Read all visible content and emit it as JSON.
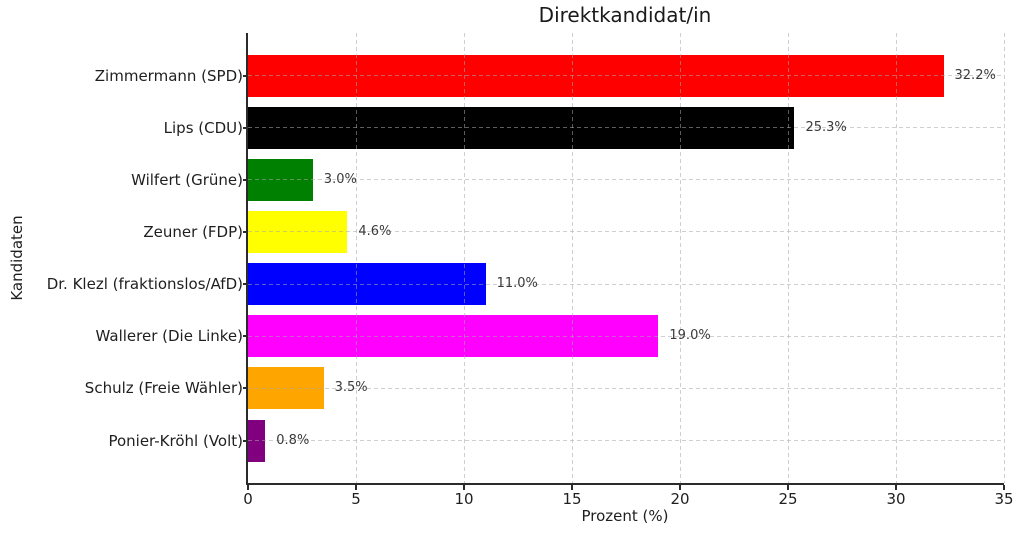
{
  "chart_data": {
    "type": "bar",
    "orientation": "horizontal",
    "title": "Direktkandidat/in",
    "xlabel": "Prozent (%)",
    "ylabel": "Kandidaten",
    "categories": [
      "Zimmermann (SPD)",
      "Lips (CDU)",
      "Wilfert (Grüne)",
      "Zeuner (FDP)",
      "Dr. Klezl (fraktionslos/AfD)",
      "Wallerer (Die Linke)",
      "Schulz (Freie Wähler)",
      "Ponier-Kröhl (Volt)"
    ],
    "values": [
      32.2,
      25.3,
      3.0,
      4.6,
      11.0,
      19.0,
      3.5,
      0.8
    ],
    "value_labels": [
      "32.2%",
      "25.3%",
      "3.0%",
      "4.6%",
      "11.0%",
      "19.0%",
      "3.5%",
      "0.8%"
    ],
    "bar_colors": [
      "#ff0000",
      "#000000",
      "#008000",
      "#ffff00",
      "#0000ff",
      "#ff00ff",
      "#ffa500",
      "#800080"
    ],
    "xlim": [
      0,
      35
    ],
    "xticks": [
      0,
      5,
      10,
      15,
      20,
      25,
      30,
      35
    ],
    "grid": "dashed, drawn over bars",
    "legend_position": "none",
    "colors": {
      "background": "#ffffff",
      "axis": "#2b2b2b",
      "gridline": "#a8a8a8",
      "annotation_text": "#3a3a3a",
      "tick_text": "#1f1f1f"
    }
  }
}
